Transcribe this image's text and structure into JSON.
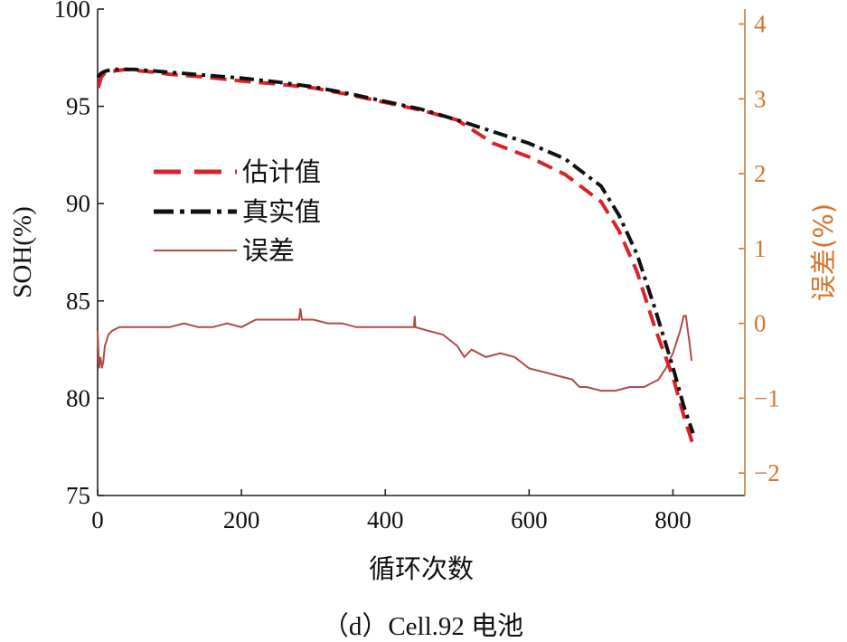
{
  "colors": {
    "estimate": "#d9232a",
    "true": "#111111",
    "error": "#b24a44",
    "right_axis": "#d4762e",
    "axis": "#222222"
  },
  "chart_data": {
    "type": "line",
    "caption": "（d）Cell.92 电池",
    "xlabel": "循环次数",
    "ylabel_left": "SOH(%)",
    "ylabel_right": "误差(%)",
    "xlim": [
      0,
      900
    ],
    "ylim_left": [
      75,
      100
    ],
    "ylim_right": [
      -2.3,
      4.2
    ],
    "x_ticks": [
      0,
      200,
      400,
      600,
      800
    ],
    "y_ticks_left": [
      75,
      80,
      85,
      90,
      95,
      100
    ],
    "y_ticks_right": [
      -2,
      -1,
      0,
      1,
      2,
      3,
      4
    ],
    "legend": [
      "估计值",
      "真实值",
      "误差"
    ],
    "series": [
      {
        "name": "估计值",
        "axis": "left",
        "style": "dashed",
        "x": [
          0,
          2,
          5,
          10,
          20,
          40,
          50,
          80,
          100,
          150,
          200,
          250,
          300,
          350,
          400,
          450,
          500,
          550,
          600,
          650,
          700,
          725,
          750,
          775,
          800,
          815,
          828
        ],
        "y": [
          96.2,
          96.1,
          96.5,
          96.7,
          96.8,
          96.9,
          96.85,
          96.75,
          96.65,
          96.5,
          96.3,
          96.15,
          95.95,
          95.6,
          95.2,
          94.8,
          94.3,
          93.1,
          92.4,
          91.5,
          90.1,
          88.6,
          86.5,
          83.6,
          81.1,
          79.1,
          77.6
        ]
      },
      {
        "name": "真实值",
        "axis": "left",
        "style": "dashdot",
        "x": [
          0,
          5,
          10,
          20,
          50,
          100,
          150,
          200,
          250,
          300,
          350,
          400,
          450,
          500,
          550,
          600,
          650,
          700,
          725,
          750,
          775,
          800,
          815,
          828
        ],
        "y": [
          96.5,
          96.7,
          96.8,
          96.9,
          96.9,
          96.75,
          96.6,
          96.45,
          96.25,
          96.0,
          95.65,
          95.25,
          94.85,
          94.3,
          93.7,
          93.1,
          92.3,
          90.9,
          89.4,
          87.4,
          84.6,
          81.6,
          79.6,
          78.2
        ]
      },
      {
        "name": "误差",
        "axis": "right",
        "style": "solid",
        "x": [
          0,
          2,
          4,
          6,
          8,
          10,
          12,
          15,
          20,
          30,
          40,
          60,
          80,
          100,
          120,
          140,
          160,
          180,
          200,
          220,
          240,
          260,
          280,
          282,
          284,
          300,
          320,
          340,
          360,
          380,
          400,
          420,
          440,
          441,
          442,
          460,
          480,
          500,
          510,
          520,
          540,
          560,
          580,
          600,
          620,
          640,
          660,
          670,
          680,
          700,
          720,
          740,
          760,
          780,
          790,
          800,
          810,
          815,
          818,
          820,
          823,
          826
        ],
        "y": [
          -0.1,
          -0.6,
          -0.45,
          -0.6,
          -0.5,
          -0.3,
          -0.25,
          -0.15,
          -0.1,
          -0.05,
          -0.05,
          -0.05,
          -0.05,
          -0.05,
          0.0,
          -0.05,
          -0.05,
          0.0,
          -0.05,
          0.05,
          0.05,
          0.05,
          0.05,
          0.2,
          0.05,
          0.05,
          0.0,
          0.0,
          -0.05,
          -0.05,
          -0.05,
          -0.05,
          -0.05,
          0.1,
          -0.05,
          -0.1,
          -0.15,
          -0.3,
          -0.45,
          -0.35,
          -0.45,
          -0.4,
          -0.45,
          -0.6,
          -0.65,
          -0.7,
          -0.75,
          -0.85,
          -0.85,
          -0.9,
          -0.9,
          -0.85,
          -0.85,
          -0.75,
          -0.6,
          -0.4,
          -0.1,
          0.1,
          0.1,
          -0.05,
          -0.25,
          -0.5
        ]
      }
    ]
  }
}
